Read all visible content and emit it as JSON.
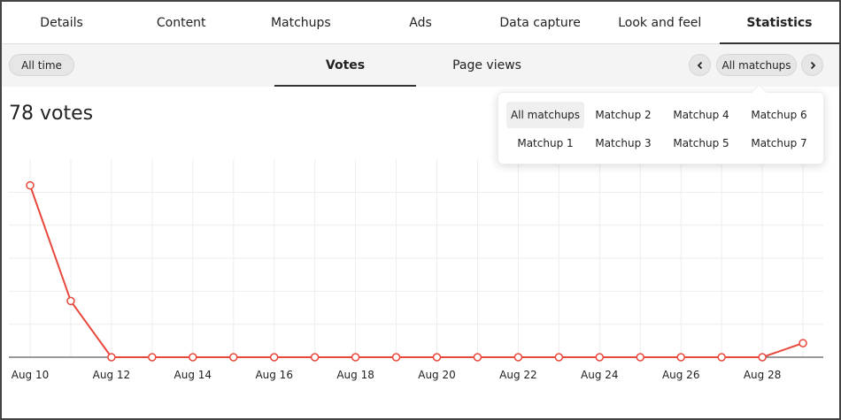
{
  "tabs": [
    {
      "label": "Details"
    },
    {
      "label": "Content"
    },
    {
      "label": "Matchups"
    },
    {
      "label": "Ads"
    },
    {
      "label": "Data capture"
    },
    {
      "label": "Look and feel"
    },
    {
      "label": "Statistics",
      "active": true
    }
  ],
  "subbar": {
    "time_filter": "All time",
    "subtabs": [
      {
        "label": "Votes",
        "active": true
      },
      {
        "label": "Page views"
      }
    ],
    "matchup_selector": "All matchups"
  },
  "summary": {
    "votes_label": "78 votes"
  },
  "dropdown": {
    "options": [
      {
        "label": "All matchups",
        "selected": true
      },
      {
        "label": "Matchup 2"
      },
      {
        "label": "Matchup 4"
      },
      {
        "label": "Matchup 6"
      },
      {
        "label": "Matchup 1"
      },
      {
        "label": "Matchup 3"
      },
      {
        "label": "Matchup 5"
      },
      {
        "label": "Matchup 7"
      }
    ]
  },
  "colors": {
    "line": "#e8473b",
    "accent": "#333333"
  },
  "chart_data": {
    "type": "line",
    "x": [
      "Aug 10",
      "Aug 11",
      "Aug 12",
      "Aug 13",
      "Aug 14",
      "Aug 15",
      "Aug 16",
      "Aug 17",
      "Aug 18",
      "Aug 19",
      "Aug 20",
      "Aug 21",
      "Aug 22",
      "Aug 23",
      "Aug 24",
      "Aug 25",
      "Aug 26",
      "Aug 27",
      "Aug 28",
      "Aug 29"
    ],
    "tick_labels": [
      "Aug 10",
      "Aug 12",
      "Aug 14",
      "Aug 16",
      "Aug 18",
      "Aug 20",
      "Aug 22",
      "Aug 24",
      "Aug 26",
      "Aug 28"
    ],
    "series": [
      {
        "values": [
          55,
          18,
          0,
          0,
          0,
          0,
          0,
          0,
          0,
          0,
          0,
          0,
          0,
          0,
          0,
          0,
          0,
          0,
          0,
          4.5
        ]
      }
    ],
    "ylim": [
      0,
      60
    ],
    "grid": true,
    "legend": "none"
  }
}
